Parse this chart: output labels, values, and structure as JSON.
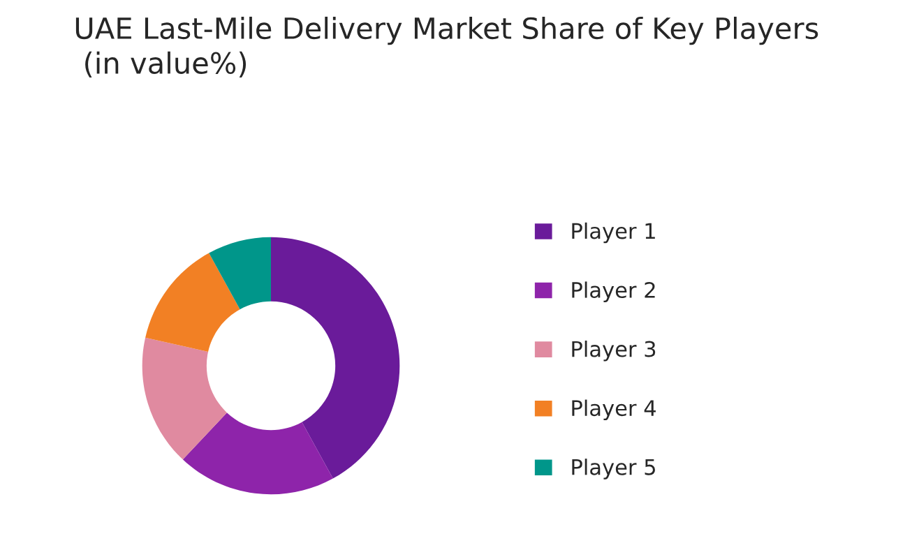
{
  "chart_data": {
    "type": "donut",
    "title": "UAE Last-Mile Delivery Market Share of Key Players\n (in value%)",
    "categories": [
      "Player 1",
      "Player 2",
      "Player 3",
      "Player 4",
      "Player 5"
    ],
    "values": [
      42,
      20,
      16.5,
      13.5,
      8
    ],
    "colors": [
      "#6a1b9a",
      "#8e24aa",
      "#e08aa0",
      "#f28024",
      "#00968a"
    ],
    "legend": "right"
  }
}
